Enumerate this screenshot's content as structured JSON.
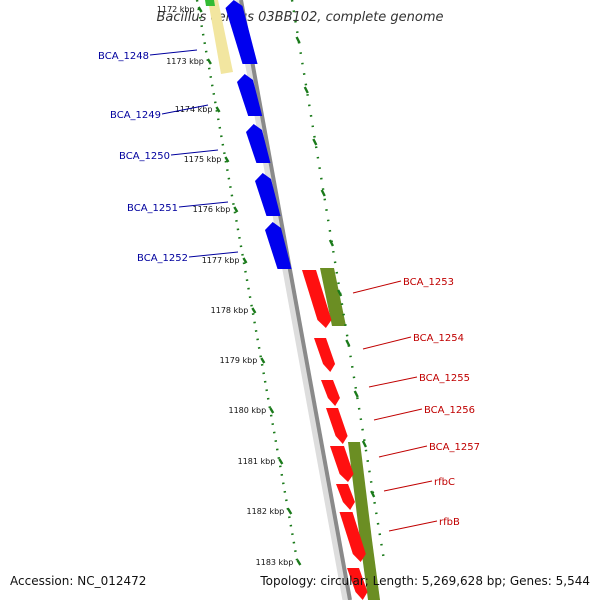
{
  "title": "Bacillus cereus 03BB102, complete genome",
  "footer": {
    "accession": "Accession: NC_012472",
    "summary": "Topology: circular; Length: 5,269,628 bp; Genes: 5,544"
  },
  "colors": {
    "backbone": "#8a8a8a",
    "forward_cds": "#0000ee",
    "reverse_cds": "#ff1010",
    "gc_green": "#6b8e23",
    "gc_yellow": "#f2e6a0",
    "tick_green": "#1a7a1a",
    "label_blue": "#00009e",
    "label_red": "#c00000"
  },
  "ticks": [
    {
      "label": "1172 kbp"
    },
    {
      "label": "1173 kbp"
    },
    {
      "label": "1174 kbp"
    },
    {
      "label": "1175 kbp"
    },
    {
      "label": "1176 kbp"
    },
    {
      "label": "1177 kbp"
    },
    {
      "label": "1178 kbp"
    },
    {
      "label": "1179 kbp"
    },
    {
      "label": "1180 kbp"
    },
    {
      "label": "1181 kbp"
    },
    {
      "label": "1182 kbp"
    },
    {
      "label": "1183 kbp"
    }
  ],
  "forward_genes": [
    {
      "name": "BCA_1248"
    },
    {
      "name": "BCA_1249"
    },
    {
      "name": "BCA_1250"
    },
    {
      "name": "BCA_1251"
    },
    {
      "name": "BCA_1252"
    }
  ],
  "reverse_genes": [
    {
      "name": "BCA_1253"
    },
    {
      "name": "BCA_1254"
    },
    {
      "name": "BCA_1255"
    },
    {
      "name": "BCA_1256"
    },
    {
      "name": "BCA_1257"
    },
    {
      "name": "rfbC"
    },
    {
      "name": "rfbB"
    }
  ]
}
